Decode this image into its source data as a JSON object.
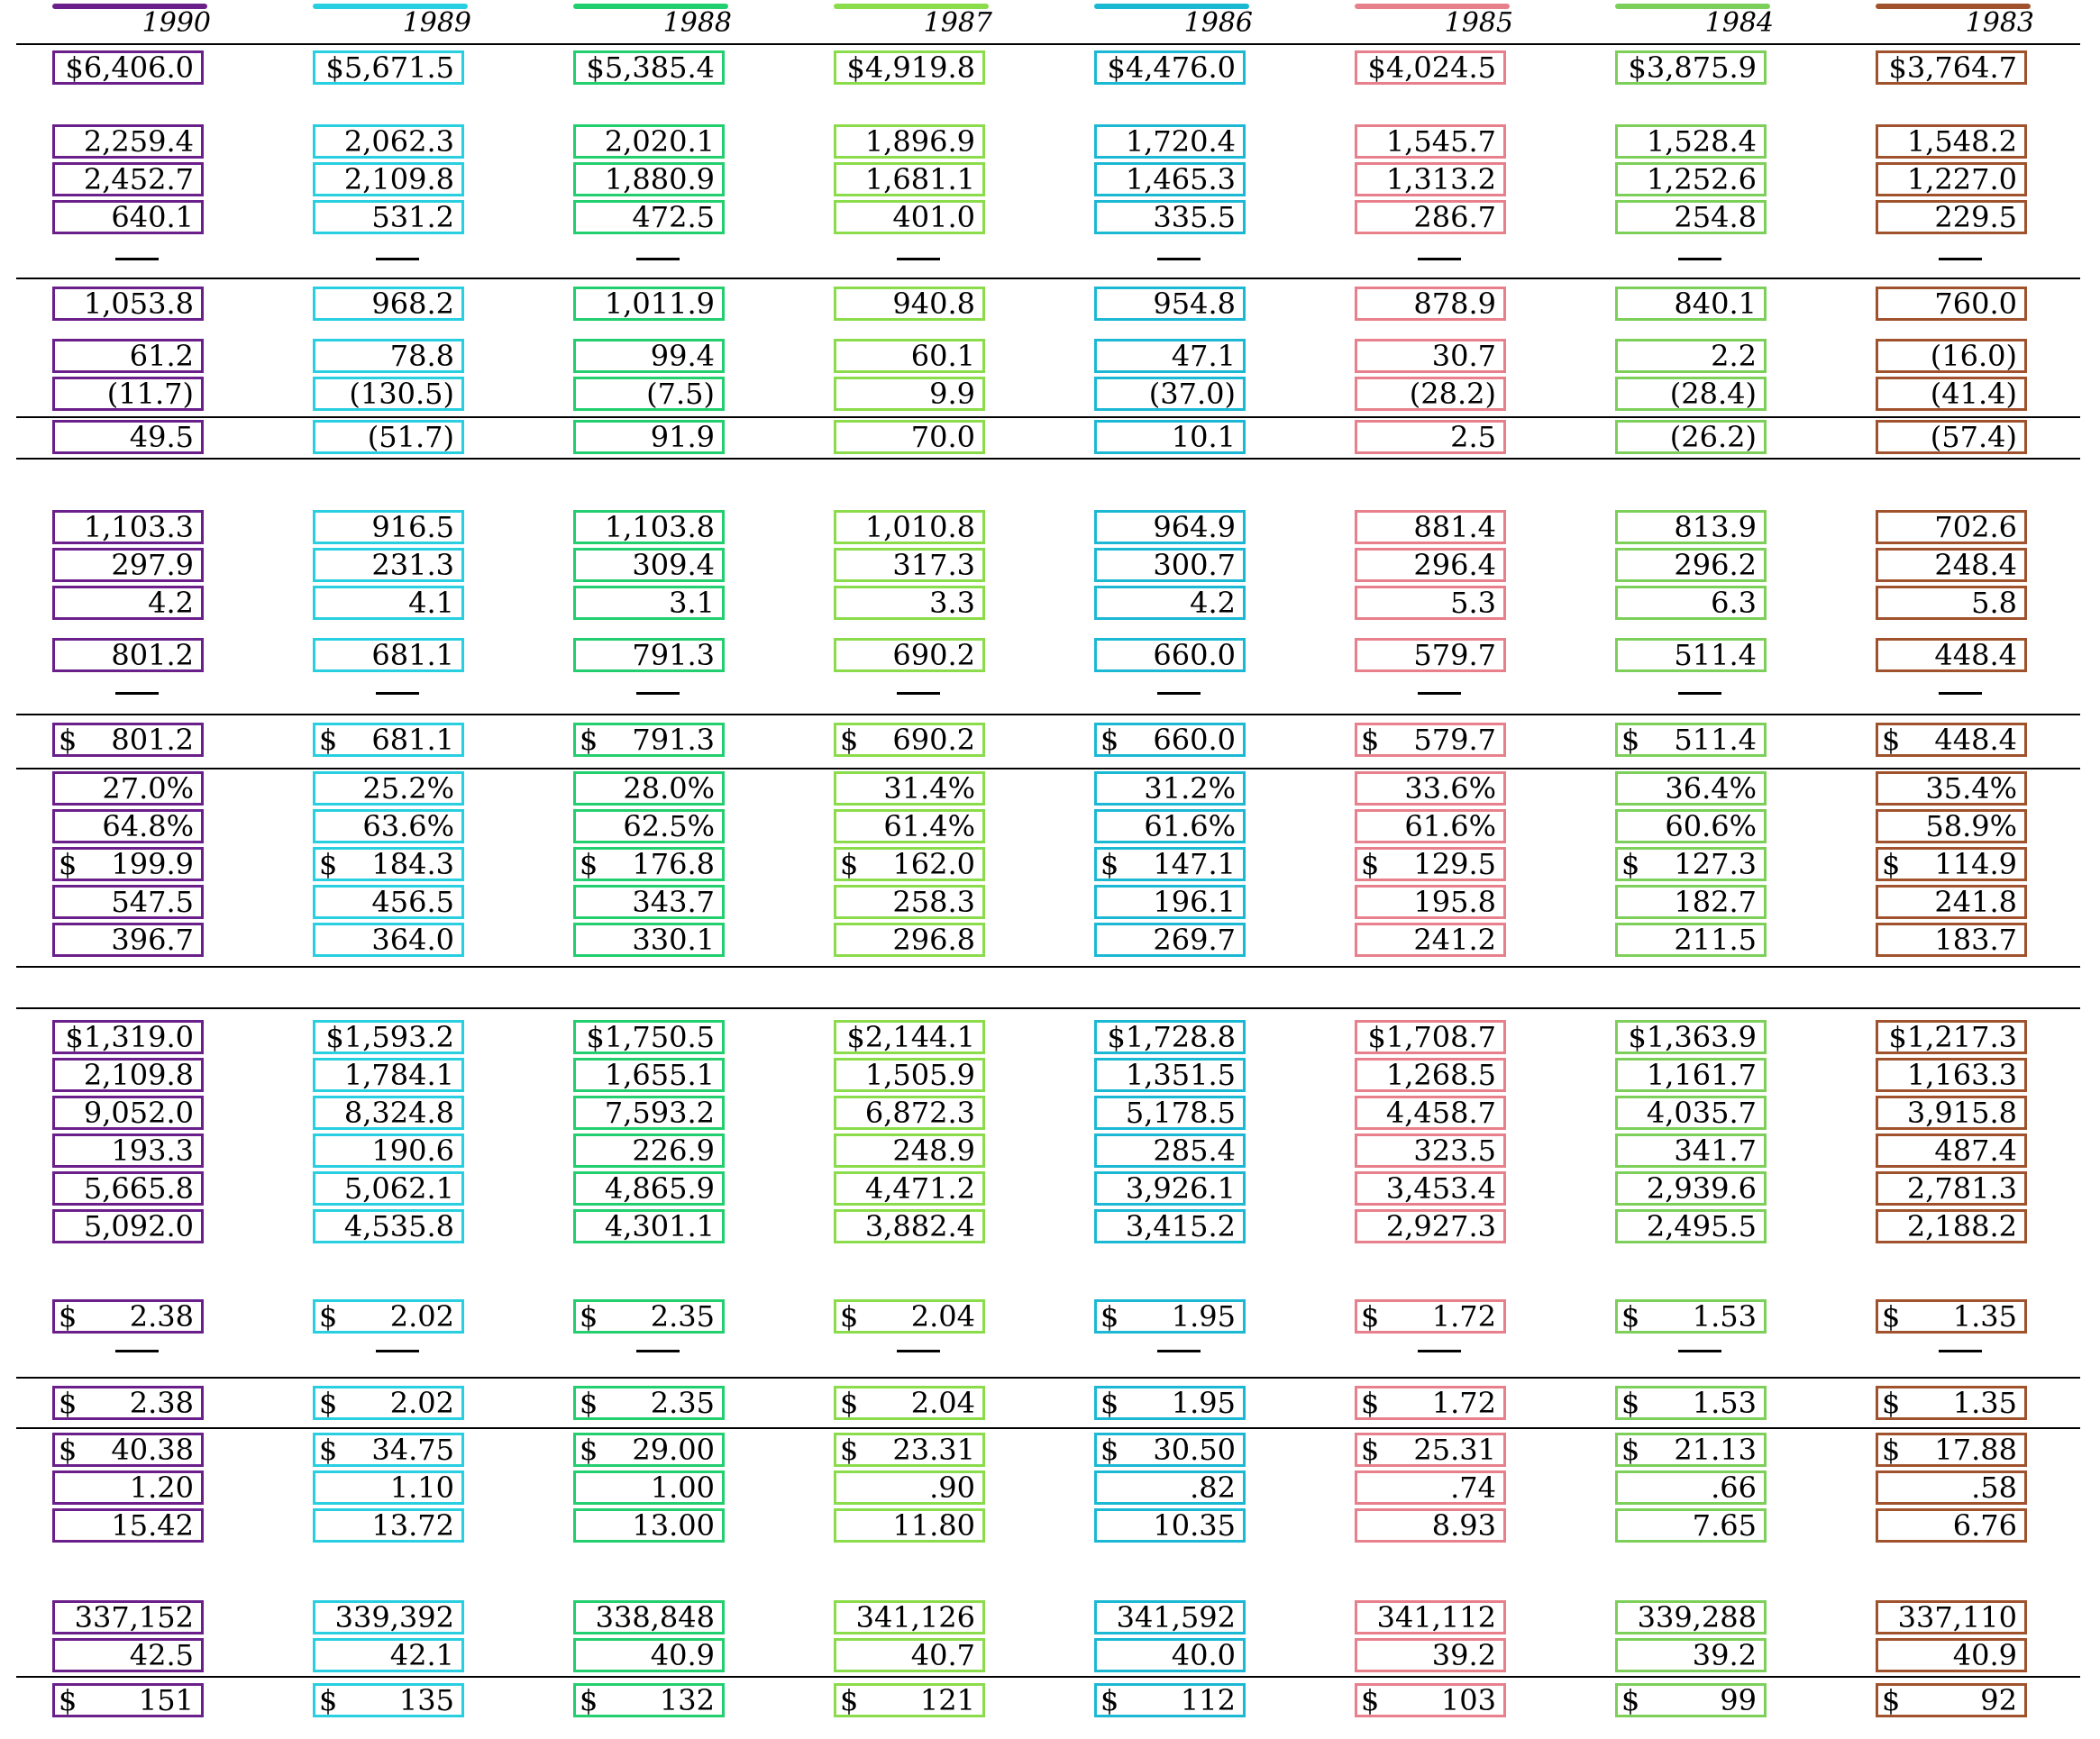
{
  "columns": [
    {
      "year": "1990",
      "color": "#6b1f8a",
      "values": [
        "$6,406.0",
        "2,259.4",
        "2,452.7",
        "640.1",
        "1,053.8",
        "61.2",
        "(11.7)",
        "49.5",
        "1,103.3",
        "297.9",
        "4.2",
        "801.2",
        "801.2",
        "27.0%",
        "64.8%",
        "199.9",
        "547.5",
        "396.7",
        "$1,319.0",
        "2,109.8",
        "9,052.0",
        "193.3",
        "5,665.8",
        "5,092.0",
        "2.38",
        "2.38",
        "40.38",
        "1.20",
        "15.42",
        "337,152",
        "42.5",
        "151"
      ]
    },
    {
      "year": "1989",
      "color": "#27cfe0",
      "values": [
        "$5,671.5",
        "2,062.3",
        "2,109.8",
        "531.2",
        "968.2",
        "78.8",
        "(130.5)",
        "(51.7)",
        "916.5",
        "231.3",
        "4.1",
        "681.1",
        "681.1",
        "25.2%",
        "63.6%",
        "184.3",
        "456.5",
        "364.0",
        "$1,593.2",
        "1,784.1",
        "8,324.8",
        "190.6",
        "5,062.1",
        "4,535.8",
        "2.02",
        "2.02",
        "34.75",
        "1.10",
        "13.72",
        "339,392",
        "42.1",
        "135"
      ]
    },
    {
      "year": "1988",
      "color": "#22cf6e",
      "values": [
        "$5,385.4",
        "2,020.1",
        "1,880.9",
        "472.5",
        "1,011.9",
        "99.4",
        "(7.5)",
        "91.9",
        "1,103.8",
        "309.4",
        "3.1",
        "791.3",
        "791.3",
        "28.0%",
        "62.5%",
        "176.8",
        "343.7",
        "330.1",
        "$1,750.5",
        "1,655.1",
        "7,593.2",
        "226.9",
        "4,865.9",
        "4,301.1",
        "2.35",
        "2.35",
        "29.00",
        "1.00",
        "13.00",
        "338,848",
        "40.9",
        "132"
      ]
    },
    {
      "year": "1987",
      "color": "#8bdc4a",
      "values": [
        "$4,919.8",
        "1,896.9",
        "1,681.1",
        "401.0",
        "940.8",
        "60.1",
        "9.9",
        "70.0",
        "1,010.8",
        "317.3",
        "3.3",
        "690.2",
        "690.2",
        "31.4%",
        "61.4%",
        "162.0",
        "258.3",
        "296.8",
        "$2,144.1",
        "1,505.9",
        "6,872.3",
        "248.9",
        "4,471.2",
        "3,882.4",
        "2.04",
        "2.04",
        "23.31",
        ".90",
        "11.80",
        "341,126",
        "40.7",
        "121"
      ]
    },
    {
      "year": "1986",
      "color": "#1bb8d4",
      "values": [
        "$4,476.0",
        "1,720.4",
        "1,465.3",
        "335.5",
        "954.8",
        "47.1",
        "(37.0)",
        "10.1",
        "964.9",
        "300.7",
        "4.2",
        "660.0",
        "660.0",
        "31.2%",
        "61.6%",
        "147.1",
        "196.1",
        "269.7",
        "$1,728.8",
        "1,351.5",
        "5,178.5",
        "285.4",
        "3,926.1",
        "3,415.2",
        "1.95",
        "1.95",
        "30.50",
        ".82",
        "10.35",
        "341,592",
        "40.0",
        "112"
      ]
    },
    {
      "year": "1985",
      "color": "#e8808c",
      "values": [
        "$4,024.5",
        "1,545.7",
        "1,313.2",
        "286.7",
        "878.9",
        "30.7",
        "(28.2)",
        "2.5",
        "881.4",
        "296.4",
        "5.3",
        "579.7",
        "579.7",
        "33.6%",
        "61.6%",
        "129.5",
        "195.8",
        "241.2",
        "$1,708.7",
        "1,268.5",
        "4,458.7",
        "323.5",
        "3,453.4",
        "2,927.3",
        "1.72",
        "1.72",
        "25.31",
        ".74",
        "8.93",
        "341,112",
        "39.2",
        "103"
      ]
    },
    {
      "year": "1984",
      "color": "#7cd05a",
      "values": [
        "$3,875.9",
        "1,528.4",
        "1,252.6",
        "254.8",
        "840.1",
        "2.2",
        "(28.4)",
        "(26.2)",
        "813.9",
        "296.2",
        "6.3",
        "511.4",
        "511.4",
        "36.4%",
        "60.6%",
        "127.3",
        "182.7",
        "211.5",
        "$1,363.9",
        "1,161.7",
        "4,035.7",
        "341.7",
        "2,939.6",
        "2,495.5",
        "1.53",
        "1.53",
        "21.13",
        ".66",
        "7.65",
        "339,288",
        "39.2",
        "99"
      ]
    },
    {
      "year": "1983",
      "color": "#a0522d",
      "values": [
        "$3,764.7",
        "1,548.2",
        "1,227.0",
        "229.5",
        "760.0",
        "(16.0)",
        "(41.4)",
        "(57.4)",
        "702.6",
        "248.4",
        "5.8",
        "448.4",
        "448.4",
        "35.4%",
        "58.9%",
        "114.9",
        "241.8",
        "183.7",
        "$1,217.3",
        "1,163.3",
        "3,915.8",
        "487.4",
        "2,781.3",
        "2,188.2",
        "1.35",
        "1.35",
        "17.88",
        ".58",
        "6.76",
        "337,110",
        "40.9",
        "92"
      ]
    }
  ]
}
